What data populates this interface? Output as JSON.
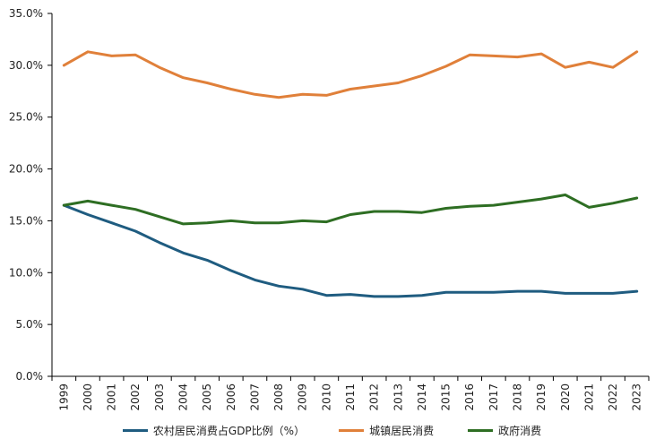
{
  "chart_data": {
    "type": "line",
    "categories": [
      "1999",
      "2000",
      "2001",
      "2002",
      "2003",
      "2004",
      "2005",
      "2006",
      "2007",
      "2008",
      "2009",
      "2010",
      "2011",
      "2012",
      "2013",
      "2014",
      "2015",
      "2016",
      "2017",
      "2018",
      "2019",
      "2020",
      "2021",
      "2022",
      "2023"
    ],
    "y_tick_labels": [
      "0.0%",
      "5.0%",
      "10.0%",
      "15.0%",
      "20.0%",
      "25.0%",
      "30.0%",
      "35.0%"
    ],
    "ylim": [
      0,
      35
    ],
    "grid": false,
    "legend_position": "bottom",
    "series": [
      {
        "name": "农村居民消费占GDP比例（%）",
        "color": "#1f5c80",
        "values": [
          16.5,
          15.6,
          14.8,
          14.0,
          12.9,
          11.9,
          11.2,
          10.2,
          9.3,
          8.7,
          8.4,
          7.8,
          7.9,
          7.7,
          7.7,
          7.8,
          8.1,
          8.1,
          8.1,
          8.2,
          8.2,
          8.0,
          8.0,
          8.0,
          8.2
        ]
      },
      {
        "name": "城镇居民消费",
        "color": "#e0803a",
        "values": [
          30.0,
          31.3,
          30.9,
          31.0,
          29.8,
          28.8,
          28.3,
          27.7,
          27.2,
          26.9,
          27.2,
          27.1,
          27.7,
          28.0,
          28.3,
          29.0,
          29.9,
          31.0,
          30.9,
          30.8,
          31.1,
          29.8,
          30.3,
          29.8,
          31.3
        ]
      },
      {
        "name": "政府消费",
        "color": "#2e6e23",
        "values": [
          16.5,
          16.9,
          16.5,
          16.1,
          15.4,
          14.7,
          14.8,
          15.0,
          14.8,
          14.8,
          15.0,
          14.9,
          15.6,
          15.9,
          15.9,
          15.8,
          16.2,
          16.4,
          16.5,
          16.8,
          17.1,
          17.5,
          16.3,
          16.7,
          17.2
        ]
      }
    ]
  }
}
